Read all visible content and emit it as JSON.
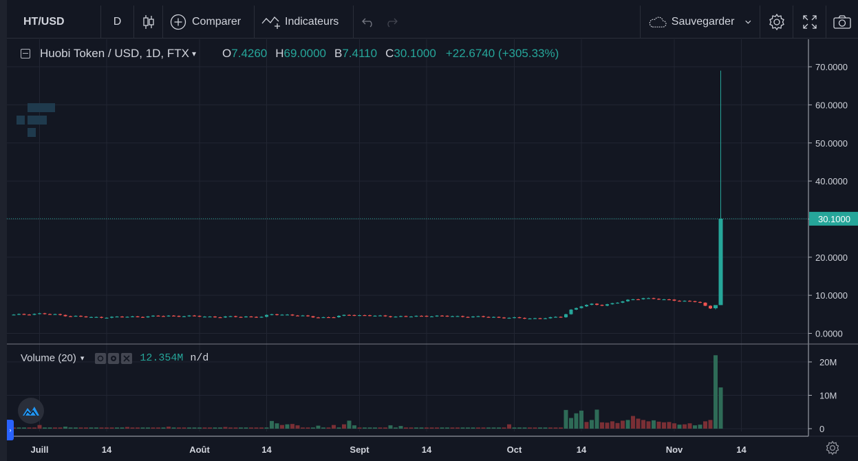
{
  "toolbar": {
    "symbol": "HT/USD",
    "interval": "D",
    "compare_label": "Comparer",
    "indicators_label": "Indicateurs",
    "save_label": "Sauvegarder"
  },
  "legend": {
    "title": "Huobi Token / USD, 1D, FTX",
    "o_key": "O",
    "o_val": "7.4260",
    "h_key": "H",
    "h_val": "69.0000",
    "b_key": "B",
    "b_val": "7.4110",
    "c_key": "C",
    "c_val": "30.1000",
    "change": "+22.6740 (+305.33%)"
  },
  "volume_legend": {
    "title": "Volume (20)",
    "value": "12.354M",
    "secondary": "n/d"
  },
  "colors": {
    "background": "#131722",
    "grid": "#222633",
    "up": "#26a69a",
    "down": "#ef5350",
    "text": "#d1d4dc",
    "price_tag": "#26a69a"
  },
  "chart_data": [
    {
      "type": "candlestick",
      "title": "Huobi Token / USD, 1D, FTX",
      "ylim": [
        -0.5,
        76
      ],
      "y_ticks": [
        "70.0000",
        "60.0000",
        "50.0000",
        "40.0000",
        "30.0000",
        "20.0000",
        "10.0000",
        "0.0000"
      ],
      "y_tick_values": [
        70,
        60,
        50,
        40,
        30,
        20,
        10,
        0
      ],
      "x_ticks": [
        "Juill",
        "14",
        "Août",
        "14",
        "Sept",
        "14",
        "Oct",
        "14",
        "Nov",
        "14"
      ],
      "x_tick_days": [
        5,
        18,
        36,
        49,
        67,
        80,
        97,
        110,
        128,
        141
      ],
      "last_price_label": "30.1000",
      "last_price": 30.1,
      "anchors_day_close": [
        [
          0,
          4.85
        ],
        [
          5,
          5.2
        ],
        [
          10,
          4.7
        ],
        [
          15,
          4.2
        ],
        [
          20,
          4.3
        ],
        [
          25,
          4.4
        ],
        [
          30,
          4.6
        ],
        [
          35,
          4.5
        ],
        [
          40,
          4.3
        ],
        [
          45,
          4.4
        ],
        [
          48,
          4.3
        ],
        [
          50,
          5.0
        ],
        [
          53,
          4.9
        ],
        [
          57,
          4.4
        ],
        [
          60,
          4.2
        ],
        [
          62,
          4.3
        ],
        [
          65,
          4.9
        ],
        [
          68,
          4.7
        ],
        [
          72,
          4.5
        ],
        [
          76,
          4.4
        ],
        [
          80,
          4.6
        ],
        [
          84,
          4.5
        ],
        [
          88,
          4.4
        ],
        [
          92,
          4.3
        ],
        [
          96,
          4.1
        ],
        [
          100,
          3.9
        ],
        [
          104,
          4.1
        ],
        [
          106,
          4.3
        ],
        [
          107,
          5.1
        ],
        [
          108,
          6.2
        ],
        [
          110,
          7.2
        ],
        [
          112,
          7.6
        ],
        [
          114,
          7.4
        ],
        [
          116,
          7.9
        ],
        [
          118,
          8.4
        ],
        [
          120,
          8.9
        ],
        [
          122,
          9.3
        ],
        [
          124,
          9.1
        ],
        [
          126,
          8.8
        ],
        [
          128,
          8.7
        ],
        [
          130,
          8.5
        ],
        [
          132,
          8.3
        ],
        [
          133,
          8.0
        ],
        [
          134,
          7.1
        ],
        [
          135,
          6.6
        ]
      ],
      "last_candles": [
        {
          "day": 136,
          "o": 6.6,
          "h": 7.0,
          "l": 6.3,
          "c": 7.426
        },
        {
          "day": 137,
          "o": 7.426,
          "h": 69.0,
          "l": 7.411,
          "c": 30.1
        }
      ]
    },
    {
      "type": "bar",
      "title": "Volume (20)",
      "ylim": [
        0,
        24
      ],
      "y_ticks": [
        "20M",
        "10M",
        "0"
      ],
      "y_tick_values": [
        20,
        10,
        0
      ],
      "unit": "M",
      "baseline": 0.35,
      "spikes": [
        [
          5,
          1.1,
          "down"
        ],
        [
          10,
          0.6,
          "up"
        ],
        [
          22,
          0.5,
          "down"
        ],
        [
          30,
          0.6,
          "down"
        ],
        [
          41,
          0.5,
          "down"
        ],
        [
          50,
          2.3,
          "up"
        ],
        [
          51,
          1.6,
          "up"
        ],
        [
          52,
          1.1,
          "down"
        ],
        [
          53,
          1.3,
          "up"
        ],
        [
          54,
          1.4,
          "down"
        ],
        [
          55,
          1.0,
          "down"
        ],
        [
          59,
          0.9,
          "up"
        ],
        [
          62,
          1.1,
          "down"
        ],
        [
          64,
          1.3,
          "down"
        ],
        [
          65,
          2.4,
          "up"
        ],
        [
          66,
          1.0,
          "up"
        ],
        [
          73,
          1.0,
          "up"
        ],
        [
          75,
          0.8,
          "up"
        ],
        [
          96,
          1.3,
          "down"
        ],
        [
          107,
          5.6,
          "up"
        ],
        [
          108,
          3.2,
          "up"
        ],
        [
          109,
          4.6,
          "up"
        ],
        [
          110,
          5.4,
          "up"
        ],
        [
          111,
          2.0,
          "down"
        ],
        [
          112,
          2.6,
          "up"
        ],
        [
          113,
          5.7,
          "up"
        ],
        [
          114,
          1.9,
          "down"
        ],
        [
          115,
          1.8,
          "down"
        ],
        [
          116,
          2.2,
          "down"
        ],
        [
          117,
          1.7,
          "down"
        ],
        [
          118,
          2.4,
          "down"
        ],
        [
          119,
          2.6,
          "up"
        ],
        [
          120,
          3.8,
          "down"
        ],
        [
          121,
          3.0,
          "down"
        ],
        [
          122,
          2.6,
          "down"
        ],
        [
          123,
          2.2,
          "down"
        ],
        [
          124,
          2.5,
          "up"
        ],
        [
          125,
          2.1,
          "down"
        ],
        [
          126,
          1.9,
          "down"
        ],
        [
          127,
          2.0,
          "down"
        ],
        [
          128,
          1.6,
          "down"
        ],
        [
          129,
          1.2,
          "up"
        ],
        [
          130,
          1.3,
          "down"
        ],
        [
          131,
          1.6,
          "down"
        ],
        [
          132,
          1.0,
          "up"
        ],
        [
          133,
          1.2,
          "up"
        ],
        [
          134,
          2.2,
          "down"
        ],
        [
          135,
          2.6,
          "down"
        ],
        [
          136,
          22.0,
          "up"
        ],
        [
          137,
          12.354,
          "up"
        ]
      ]
    }
  ]
}
